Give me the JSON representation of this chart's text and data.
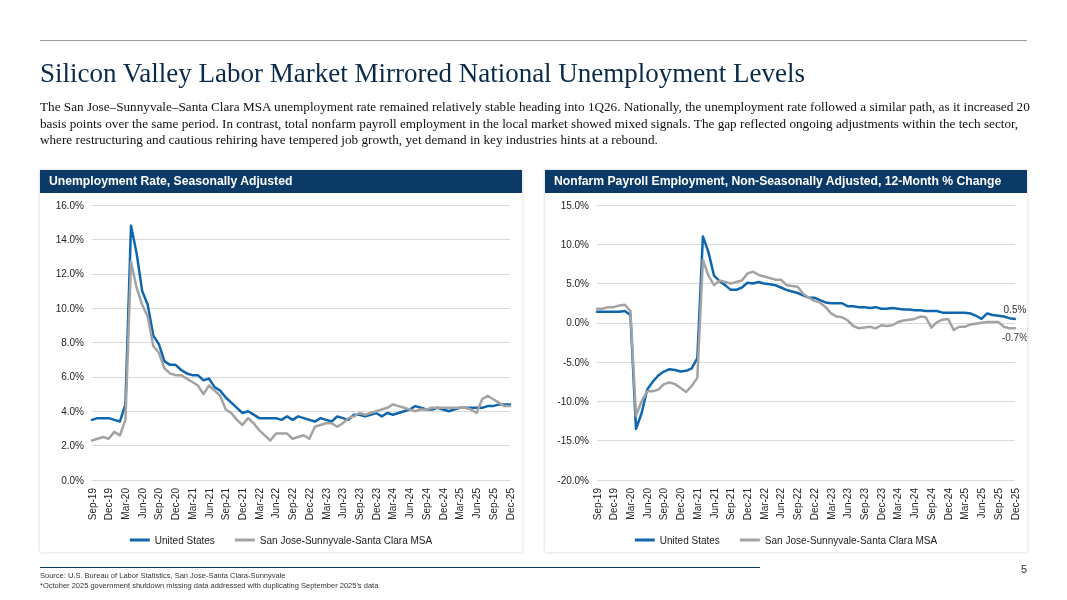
{
  "chart_data": [
    {
      "type": "line",
      "title": "Silicon Valley Labor Market Mirrored National Unemployment Levels",
      "subtitle": "Unemployment Rate, Seasonally Adjusted",
      "annotations": [
        "The San Jose–Sunnyvale–Santa Clara MSA unemployment rate remained relatively stable heading into 1Q26. Nationally, the unemployment rate followed a similar path, as it increased 20 basis points over the same period. In contrast, total nonfarm payroll employment in the local market showed mixed signals. The gap reflected ongoing adjustments within the tech sector, where restructuring and cautious rehiring have tempered job growth, yet demand in key industries hints at a rebound.",
        "Source: U.S. Bureau of Labor Statistics, San Jose-Santa Clara-Sunnyvale",
        "*October 2025 government shutdown missing data addressed with duplicating September 2025's data"
      ],
      "categories": [
        "Sep-19",
        null,
        null,
        "Dec-19",
        null,
        null,
        "Mar-20",
        null,
        null,
        "Jun-20",
        null,
        null,
        "Sep-20",
        null,
        null,
        "Dec-20",
        null,
        null,
        "Mar-21",
        null,
        null,
        "Jun-21",
        null,
        null,
        "Sep-21",
        null,
        null,
        "Dec-21",
        null,
        null,
        "Mar-22",
        null,
        null,
        "Jun-22",
        null,
        null,
        "Sep-22",
        null,
        null,
        "Dec-22",
        null,
        null,
        "Mar-23",
        null,
        null,
        "Jun-23",
        null,
        null,
        "Sep-23",
        null,
        null,
        "Dec-23",
        null,
        null,
        "Mar-24",
        null,
        null,
        "Jun-24",
        null,
        null,
        "Sep-24",
        null,
        null,
        "Dec-24",
        null,
        null,
        "Mar-25",
        null,
        null,
        "Jun-25",
        null,
        null,
        "Sep-25",
        null,
        null,
        "Dec-25"
      ],
      "series": [
        {
          "name": "United States",
          "color": "#1066ad",
          "values": [
            3.5,
            3.6,
            3.6,
            3.6,
            3.5,
            3.4,
            4.4,
            14.8,
            13.2,
            11.0,
            10.2,
            8.4,
            7.9,
            6.9,
            6.7,
            6.7,
            6.4,
            6.2,
            6.1,
            6.1,
            5.8,
            5.9,
            5.4,
            5.2,
            4.8,
            4.5,
            4.2,
            3.9,
            4.0,
            3.8,
            3.6,
            3.6,
            3.6,
            3.6,
            3.5,
            3.7,
            3.5,
            3.7,
            3.6,
            3.5,
            3.4,
            3.6,
            3.5,
            3.4,
            3.7,
            3.6,
            3.5,
            3.8,
            3.8,
            3.7,
            3.8,
            3.9,
            3.7,
            3.9,
            3.8,
            3.9,
            4.0,
            4.1,
            4.3,
            4.2,
            4.1,
            4.1,
            4.2,
            4.1,
            4.0,
            4.1,
            4.2,
            4.2,
            4.2,
            4.2,
            4.2,
            4.3,
            4.3,
            4.4,
            4.4,
            4.4
          ]
        },
        {
          "name": "San Jose-Sunnyvale-Santa Clara MSA",
          "color": "#a3a3a3",
          "values": [
            2.3,
            2.4,
            2.5,
            2.4,
            2.8,
            2.6,
            3.5,
            12.7,
            11.2,
            10.2,
            9.5,
            7.8,
            7.4,
            6.5,
            6.2,
            6.1,
            6.1,
            5.9,
            5.7,
            5.5,
            5.0,
            5.5,
            5.2,
            4.9,
            4.1,
            3.9,
            3.5,
            3.2,
            3.6,
            3.3,
            2.9,
            2.6,
            2.3,
            2.7,
            2.7,
            2.7,
            2.4,
            2.5,
            2.6,
            2.4,
            3.1,
            3.2,
            3.3,
            3.3,
            3.1,
            3.3,
            3.6,
            3.7,
            3.9,
            3.8,
            3.9,
            4.0,
            4.1,
            4.2,
            4.4,
            4.3,
            4.2,
            4.1,
            4.0,
            4.1,
            4.1,
            4.2,
            4.2,
            4.2,
            4.2,
            4.2,
            4.2,
            4.2,
            4.1,
            3.9,
            4.7,
            4.9,
            4.7,
            4.5,
            4.3,
            4.3
          ]
        }
      ],
      "ylim": [
        0,
        16
      ],
      "yticks": [
        {
          "value": 0,
          "label": "0.0%"
        },
        {
          "value": 2,
          "label": "2.0%"
        },
        {
          "value": 4,
          "label": "4.0%"
        },
        {
          "value": 6,
          "label": "6.0%"
        },
        {
          "value": 8,
          "label": "8.0%"
        },
        {
          "value": 10,
          "label": "10.0%"
        },
        {
          "value": 12,
          "label": "12.0%"
        },
        {
          "value": 14,
          "label": "14.0%"
        },
        {
          "value": 16,
          "label": "16.0%"
        }
      ],
      "grid": "y",
      "legend": "bottom",
      "marker": "none",
      "line_style": "solid"
    },
    {
      "type": "line",
      "title": "Nonfarm Payroll Employment, Non-Seasonally Adjusted, 12-Month % Change",
      "annotations": [
        "5"
      ],
      "categories": [
        "Sep-19",
        null,
        null,
        "Dec-19",
        null,
        null,
        "Mar-20",
        null,
        null,
        "Jun-20",
        null,
        null,
        "Sep-20",
        null,
        null,
        "Dec-20",
        null,
        null,
        "Mar-21",
        null,
        null,
        "Jun-21",
        null,
        null,
        "Sep-21",
        null,
        null,
        "Dec-21",
        null,
        null,
        "Mar-22",
        null,
        null,
        "Jun-22",
        null,
        null,
        "Sep-22",
        null,
        null,
        "Dec-22",
        null,
        null,
        "Mar-23",
        null,
        null,
        "Jun-23",
        null,
        null,
        "Sep-23",
        null,
        null,
        "Dec-23",
        null,
        null,
        "Mar-24",
        null,
        null,
        "Jun-24",
        null,
        null,
        "Sep-24",
        null,
        null,
        "Dec-24",
        null,
        null,
        "Mar-25",
        null,
        null,
        "Jun-25",
        null,
        null,
        "Sep-25",
        null,
        null,
        "Dec-25"
      ],
      "series": [
        {
          "name": "United States",
          "color": "#1066ad",
          "values": [
            1.4,
            1.4,
            1.4,
            1.4,
            1.4,
            1.5,
            1.0,
            -13.5,
            -11.5,
            -8.5,
            -7.5,
            -6.7,
            -6.2,
            -5.9,
            -6.0,
            -6.2,
            -6.1,
            -5.8,
            -4.5,
            11.0,
            9.0,
            6.0,
            5.3,
            4.8,
            4.2,
            4.2,
            4.5,
            5.1,
            5.0,
            5.2,
            5.0,
            4.9,
            4.8,
            4.5,
            4.2,
            4.0,
            3.8,
            3.5,
            3.2,
            3.2,
            2.9,
            2.6,
            2.5,
            2.5,
            2.5,
            2.1,
            2.1,
            2.0,
            2.0,
            1.9,
            2.0,
            1.8,
            1.8,
            1.9,
            1.8,
            1.7,
            1.7,
            1.6,
            1.6,
            1.5,
            1.5,
            1.5,
            1.3,
            1.3,
            1.3,
            1.3,
            1.3,
            1.2,
            0.9,
            0.5,
            1.2,
            1.0,
            0.9,
            0.8,
            0.6,
            0.5
          ],
          "value_labels": [
            null,
            null,
            null,
            null,
            null,
            null,
            null,
            null,
            null,
            null,
            null,
            null,
            null,
            null,
            null,
            null,
            null,
            null,
            null,
            null,
            null,
            null,
            null,
            null,
            null,
            null,
            null,
            null,
            null,
            null,
            null,
            null,
            null,
            null,
            null,
            null,
            null,
            null,
            null,
            null,
            null,
            null,
            null,
            null,
            null,
            null,
            null,
            null,
            null,
            null,
            null,
            null,
            null,
            null,
            null,
            null,
            null,
            null,
            null,
            null,
            null,
            null,
            null,
            null,
            null,
            null,
            null,
            null,
            null,
            null,
            null,
            null,
            null,
            null,
            null,
            "0.5%"
          ]
        },
        {
          "name": "San Jose-Sunnyvale-Santa Clara MSA",
          "color": "#a3a3a3",
          "values": [
            1.8,
            1.8,
            2.0,
            2.0,
            2.2,
            2.3,
            1.5,
            -11.8,
            -10.0,
            -8.7,
            -8.7,
            -8.5,
            -7.8,
            -7.6,
            -7.8,
            -8.3,
            -8.8,
            -8.0,
            -7.0,
            8.0,
            6.0,
            4.8,
            5.4,
            5.2,
            5.0,
            5.2,
            5.4,
            6.3,
            6.5,
            6.1,
            5.9,
            5.7,
            5.5,
            5.5,
            4.8,
            4.7,
            4.6,
            3.7,
            3.2,
            2.8,
            2.6,
            2.0,
            1.2,
            0.8,
            0.7,
            0.3,
            -0.4,
            -0.7,
            -0.6,
            -0.5,
            -0.7,
            -0.3,
            -0.4,
            -0.3,
            0.1,
            0.3,
            0.4,
            0.5,
            0.8,
            0.7,
            -0.6,
            0.1,
            0.4,
            0.5,
            -0.9,
            -0.5,
            -0.5,
            -0.2,
            -0.1,
            0.0,
            0.1,
            0.1,
            0.1,
            -0.5,
            -0.7,
            -0.7
          ],
          "value_labels": [
            null,
            null,
            null,
            null,
            null,
            null,
            null,
            null,
            null,
            null,
            null,
            null,
            null,
            null,
            null,
            null,
            null,
            null,
            null,
            null,
            null,
            null,
            null,
            null,
            null,
            null,
            null,
            null,
            null,
            null,
            null,
            null,
            null,
            null,
            null,
            null,
            null,
            null,
            null,
            null,
            null,
            null,
            null,
            null,
            null,
            null,
            null,
            null,
            null,
            null,
            null,
            null,
            null,
            null,
            null,
            null,
            null,
            null,
            null,
            null,
            null,
            null,
            null,
            null,
            null,
            null,
            null,
            null,
            null,
            null,
            null,
            null,
            null,
            null,
            null,
            "-0.7%"
          ]
        }
      ],
      "ylim": [
        -20,
        15
      ],
      "yticks": [
        {
          "value": -20,
          "label": "-20.0%"
        },
        {
          "value": -15,
          "label": "-15.0%"
        },
        {
          "value": -10,
          "label": "-10.0%"
        },
        {
          "value": -5,
          "label": "-5.0%"
        },
        {
          "value": 0,
          "label": "0.0%"
        },
        {
          "value": 5,
          "label": "5.0%"
        },
        {
          "value": 10,
          "label": "10.0%"
        },
        {
          "value": 15,
          "label": "15.0%"
        }
      ],
      "grid": "y",
      "legend": "bottom",
      "marker": "none",
      "line_style": "solid"
    }
  ]
}
